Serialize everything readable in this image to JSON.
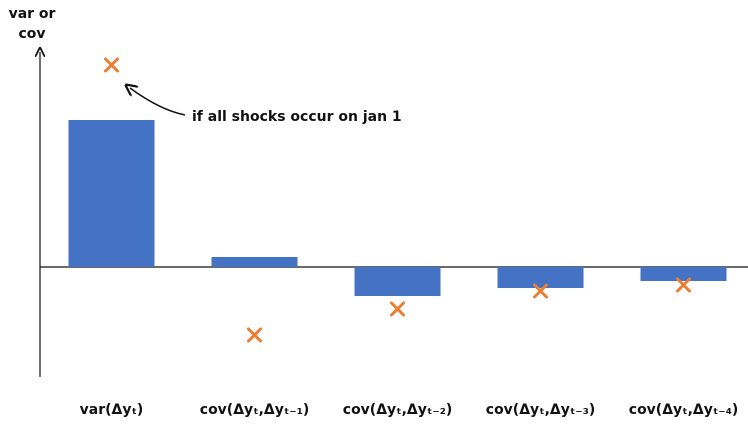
{
  "chart_data": {
    "type": "bar",
    "y_label": "var or cov",
    "annotation": "if all shocks occur on jan 1",
    "categories": [
      "var(Δyₜ)",
      "cov(Δyₜ,Δyₜ₋₁)",
      "cov(Δyₜ,Δyₜ₋₂)",
      "cov(Δyₜ,Δyₜ₋₃)",
      "cov(Δyₜ,Δyₜ₋₄)"
    ],
    "ylim": [
      -110,
      217
    ],
    "series": [
      {
        "type": "bar",
        "color": "#4472c4",
        "values": [
          147,
          10,
          -29,
          -21,
          -14
        ]
      },
      {
        "type": "scatter",
        "marker": "x",
        "color": "#ed7d31",
        "values": [
          202,
          -68,
          -42,
          -24,
          -18
        ]
      }
    ]
  }
}
